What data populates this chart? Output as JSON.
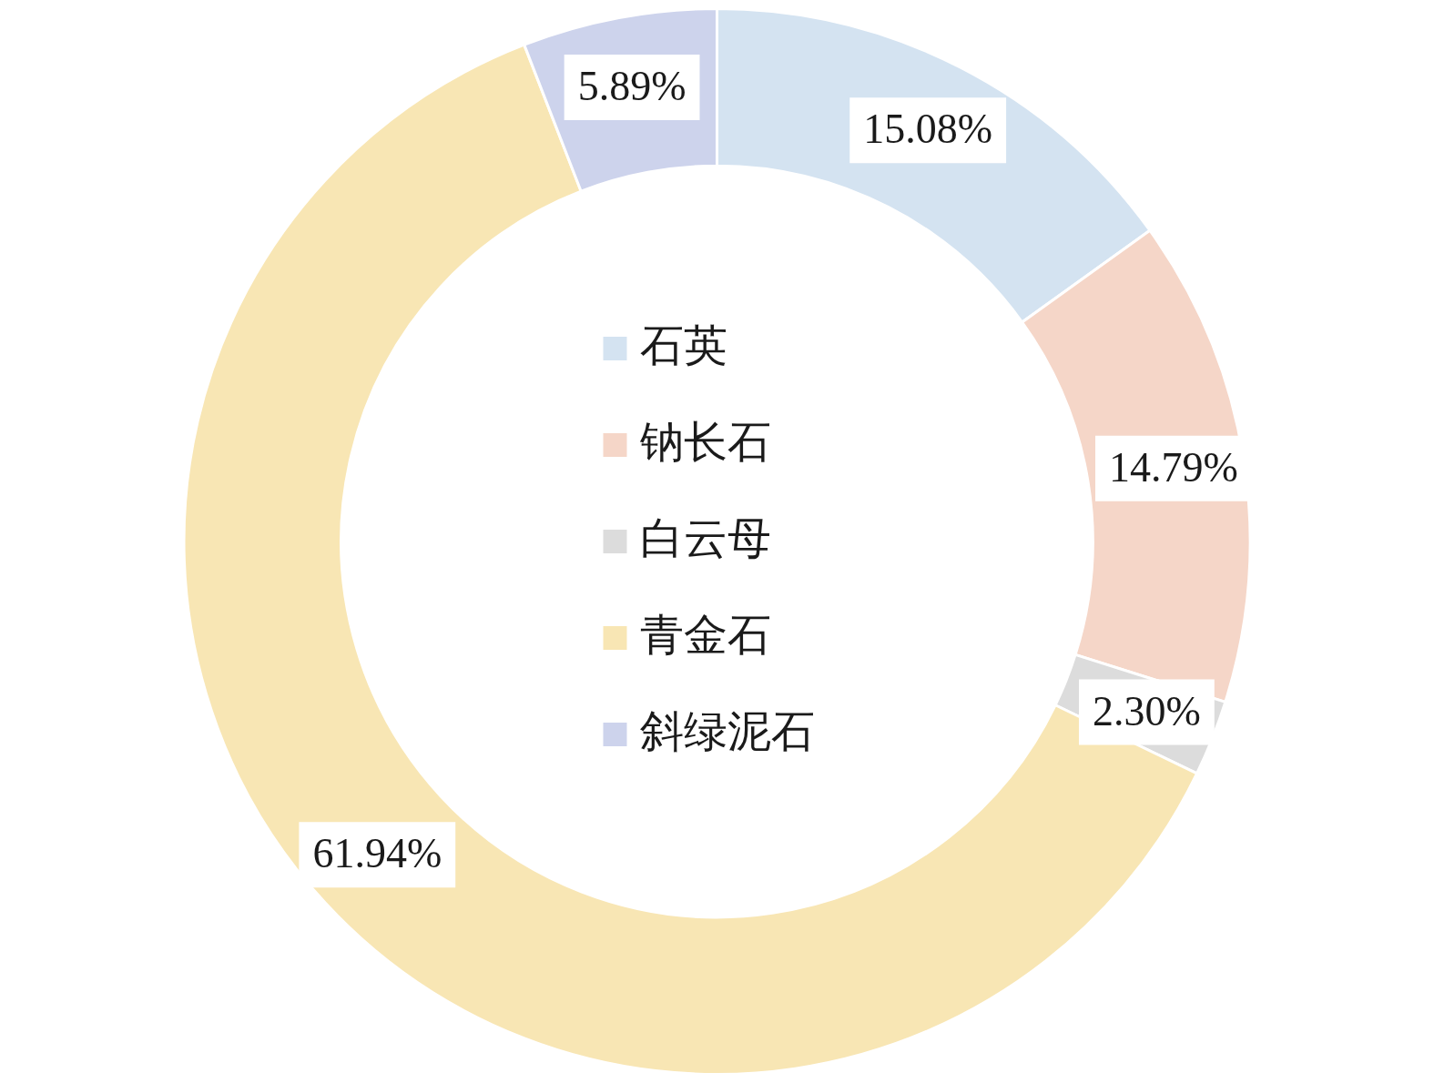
{
  "chart_data": {
    "type": "donut",
    "categories": [
      "石英",
      "钠长石",
      "白云母",
      "青金石",
      "斜绿泥石"
    ],
    "values": [
      15.08,
      14.79,
      2.3,
      61.94,
      5.89
    ],
    "colors": [
      "#d4e3f1",
      "#f5d6c8",
      "#dcdcdc",
      "#f8e6b4",
      "#cdd3ec"
    ],
    "value_labels": [
      "15.08%",
      "14.79%",
      "2.30%",
      "61.94%",
      "5.89%"
    ],
    "legend": "center"
  }
}
